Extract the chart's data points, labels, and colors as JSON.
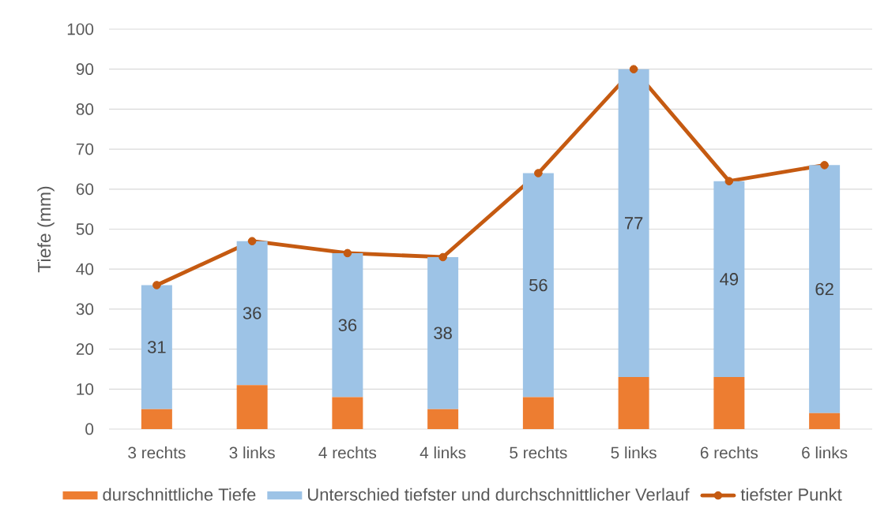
{
  "chart_data": {
    "type": "bar",
    "stacked": true,
    "ylabel": "Tiefe (mm)",
    "categories": [
      "3 rechts",
      "3 links",
      "4 rechts",
      "4 links",
      "5 rechts",
      "5 links",
      "6 rechts",
      "6 links"
    ],
    "series": [
      {
        "name": "durschnittliche Tiefe",
        "color": "#ed7d31",
        "values": [
          5,
          11,
          8,
          5,
          8,
          13,
          13,
          4
        ]
      },
      {
        "name": "Unterschied tiefster und durchschnittlicher Verlauf",
        "color": "#9dc3e6",
        "values": [
          31,
          36,
          36,
          38,
          56,
          77,
          49,
          62
        ],
        "value_labels": [
          "31",
          "36",
          "36",
          "38",
          "56",
          "77",
          "49",
          "62"
        ]
      },
      {
        "name": "tiefster Punkt",
        "type": "line",
        "color": "#c55a11",
        "values": [
          36,
          47,
          44,
          43,
          64,
          90,
          62,
          66
        ],
        "marker": "circle",
        "line_style": "solid"
      }
    ],
    "ylim": [
      0,
      100
    ],
    "yticks": [
      0,
      10,
      20,
      30,
      40,
      50,
      60,
      70,
      80,
      90,
      100
    ],
    "grid": "y",
    "legend": "bottom"
  }
}
